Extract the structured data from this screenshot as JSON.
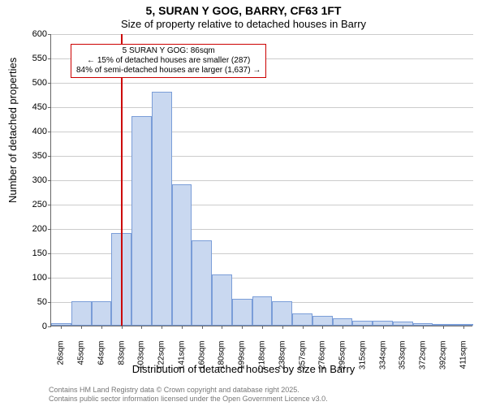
{
  "chart": {
    "type": "histogram",
    "title_line1": "5, SURAN Y GOG, BARRY, CF63 1FT",
    "title_line2": "Size of property relative to detached houses in Barry",
    "x_label": "Distribution of detached houses by size in Barry",
    "y_label": "Number of detached properties",
    "background_color": "#ffffff",
    "grid_color": "#cccccc",
    "bar_fill": "#c9d8f0",
    "bar_border": "#7a9dd8",
    "marker_color": "#cc0000",
    "ylim": [
      0,
      600
    ],
    "ytick_step": 50,
    "x_categories": [
      "26sqm",
      "45sqm",
      "64sqm",
      "83sqm",
      "103sqm",
      "122sqm",
      "141sqm",
      "160sqm",
      "180sqm",
      "199sqm",
      "218sqm",
      "238sqm",
      "257sqm",
      "276sqm",
      "295sqm",
      "315sqm",
      "334sqm",
      "353sqm",
      "372sqm",
      "392sqm",
      "411sqm"
    ],
    "values": [
      5,
      50,
      50,
      190,
      430,
      480,
      290,
      175,
      105,
      55,
      60,
      50,
      25,
      20,
      15,
      10,
      10,
      8,
      5,
      3,
      3
    ],
    "marker_position": 86,
    "x_range": [
      20,
      420
    ],
    "annotation": {
      "line1": "5 SURAN Y GOG: 86sqm",
      "line2": "← 15% of detached houses are smaller (287)",
      "line3": "84% of semi-detached houses are larger (1,637) →"
    },
    "attribution_line1": "Contains HM Land Registry data © Crown copyright and database right 2025.",
    "attribution_line2": "Contains public sector information licensed under the Open Government Licence v3.0.",
    "title_fontsize": 14,
    "label_fontsize": 13,
    "tick_fontsize": 10
  }
}
